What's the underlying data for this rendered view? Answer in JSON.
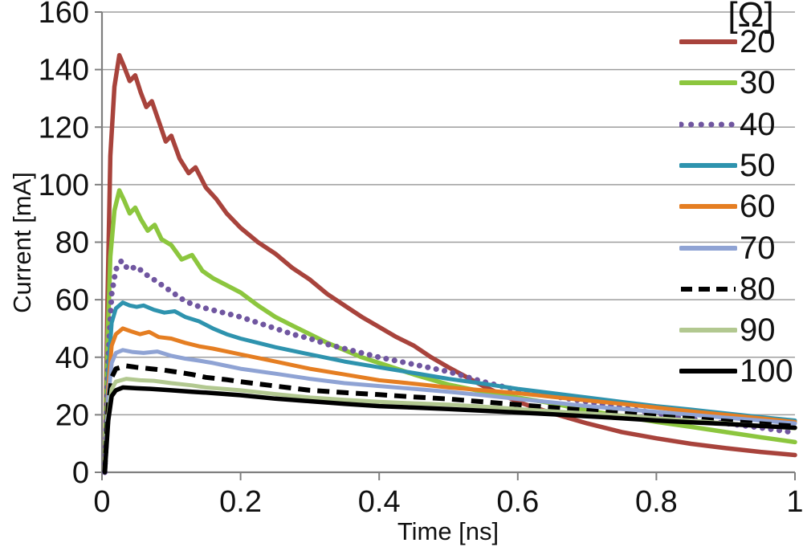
{
  "chart_data": {
    "type": "line",
    "title": "",
    "xlabel": "Time [ns]",
    "ylabel": "Current [mA]",
    "legend_title": "[Ω]",
    "legend_position": "right-overlay",
    "xlim": [
      0,
      1
    ],
    "ylim": [
      0,
      160
    ],
    "xticks": [
      "0",
      "0.2",
      "0.4",
      "0.6",
      "0.8",
      "1"
    ],
    "xtick_values": [
      0,
      0.2,
      0.4,
      0.6,
      0.8,
      1
    ],
    "yticks": [
      "0",
      "20",
      "40",
      "60",
      "80",
      "100",
      "120",
      "140",
      "160"
    ],
    "ytick_values": [
      0,
      20,
      40,
      60,
      80,
      100,
      120,
      140,
      160
    ],
    "grid": "horizontal",
    "gridline_color": "#9E9E9E",
    "axis_color": "#7F7F7F",
    "text_color": "#111111",
    "background_color": "#FFFFFF",
    "series": [
      {
        "name": "20",
        "color": "#A8433C",
        "style": "solid",
        "width": 5.5,
        "points": [
          [
            0.004,
            0
          ],
          [
            0.008,
            60
          ],
          [
            0.012,
            110
          ],
          [
            0.018,
            134
          ],
          [
            0.025,
            145
          ],
          [
            0.032,
            141
          ],
          [
            0.04,
            136
          ],
          [
            0.048,
            138
          ],
          [
            0.056,
            132
          ],
          [
            0.064,
            127
          ],
          [
            0.072,
            129
          ],
          [
            0.082,
            122
          ],
          [
            0.092,
            115
          ],
          [
            0.1,
            117
          ],
          [
            0.112,
            109
          ],
          [
            0.125,
            104
          ],
          [
            0.135,
            106
          ],
          [
            0.15,
            99
          ],
          [
            0.165,
            95
          ],
          [
            0.18,
            90
          ],
          [
            0.2,
            85
          ],
          [
            0.225,
            80
          ],
          [
            0.25,
            76
          ],
          [
            0.275,
            71
          ],
          [
            0.3,
            67
          ],
          [
            0.325,
            62
          ],
          [
            0.35,
            58
          ],
          [
            0.375,
            54
          ],
          [
            0.4,
            50.5
          ],
          [
            0.425,
            47
          ],
          [
            0.45,
            44
          ],
          [
            0.475,
            40
          ],
          [
            0.5,
            36.5
          ],
          [
            0.55,
            30
          ],
          [
            0.6,
            24.5
          ],
          [
            0.65,
            20.5
          ],
          [
            0.7,
            17
          ],
          [
            0.75,
            14
          ],
          [
            0.8,
            11.8
          ],
          [
            0.85,
            9.9
          ],
          [
            0.9,
            8.4
          ],
          [
            0.95,
            7.1
          ],
          [
            1,
            6
          ]
        ]
      },
      {
        "name": "30",
        "color": "#8CC63E",
        "style": "solid",
        "width": 5.5,
        "points": [
          [
            0.004,
            0
          ],
          [
            0.008,
            45
          ],
          [
            0.012,
            75
          ],
          [
            0.018,
            91
          ],
          [
            0.025,
            98
          ],
          [
            0.032,
            94.5
          ],
          [
            0.04,
            90
          ],
          [
            0.048,
            92
          ],
          [
            0.056,
            88
          ],
          [
            0.066,
            84
          ],
          [
            0.076,
            86
          ],
          [
            0.086,
            81
          ],
          [
            0.1,
            79
          ],
          [
            0.115,
            74
          ],
          [
            0.13,
            75.5
          ],
          [
            0.145,
            70
          ],
          [
            0.16,
            67.5
          ],
          [
            0.18,
            65
          ],
          [
            0.2,
            62.5
          ],
          [
            0.225,
            58
          ],
          [
            0.25,
            54
          ],
          [
            0.275,
            51
          ],
          [
            0.3,
            48
          ],
          [
            0.325,
            45
          ],
          [
            0.35,
            42.5
          ],
          [
            0.375,
            40
          ],
          [
            0.4,
            38
          ],
          [
            0.45,
            34
          ],
          [
            0.5,
            30.5
          ],
          [
            0.55,
            28
          ],
          [
            0.6,
            26
          ],
          [
            0.65,
            24
          ],
          [
            0.7,
            21.5
          ],
          [
            0.75,
            19.5
          ],
          [
            0.8,
            17.5
          ],
          [
            0.85,
            15.8
          ],
          [
            0.9,
            14
          ],
          [
            0.95,
            12.2
          ],
          [
            1,
            10.5
          ]
        ]
      },
      {
        "name": "40",
        "color": "#7056A0",
        "style": "dotted",
        "width": 7,
        "points": [
          [
            0.004,
            0
          ],
          [
            0.009,
            40
          ],
          [
            0.014,
            62
          ],
          [
            0.02,
            70.5
          ],
          [
            0.028,
            73.5
          ],
          [
            0.038,
            70.5
          ],
          [
            0.05,
            71.5
          ],
          [
            0.062,
            69
          ],
          [
            0.075,
            67
          ],
          [
            0.09,
            64.5
          ],
          [
            0.105,
            62
          ],
          [
            0.12,
            59.5
          ],
          [
            0.135,
            58
          ],
          [
            0.15,
            57
          ],
          [
            0.175,
            55.5
          ],
          [
            0.2,
            54
          ],
          [
            0.225,
            52
          ],
          [
            0.25,
            50
          ],
          [
            0.275,
            48
          ],
          [
            0.3,
            46.5
          ],
          [
            0.325,
            44.5
          ],
          [
            0.35,
            43
          ],
          [
            0.4,
            40
          ],
          [
            0.45,
            37.5
          ],
          [
            0.5,
            35
          ],
          [
            0.55,
            31.5
          ],
          [
            0.6,
            28.5
          ],
          [
            0.65,
            26.5
          ],
          [
            0.7,
            24.5
          ],
          [
            0.75,
            22.5
          ],
          [
            0.8,
            20.5
          ],
          [
            0.85,
            18.5
          ],
          [
            0.9,
            17
          ],
          [
            0.95,
            15.5
          ],
          [
            1,
            13.8
          ]
        ]
      },
      {
        "name": "50",
        "color": "#2E93AE",
        "style": "solid",
        "width": 5,
        "points": [
          [
            0.004,
            0
          ],
          [
            0.009,
            35
          ],
          [
            0.014,
            52
          ],
          [
            0.02,
            57
          ],
          [
            0.03,
            59
          ],
          [
            0.04,
            58
          ],
          [
            0.05,
            57.5
          ],
          [
            0.06,
            58
          ],
          [
            0.075,
            56.5
          ],
          [
            0.09,
            55.5
          ],
          [
            0.105,
            56
          ],
          [
            0.12,
            54
          ],
          [
            0.14,
            52.5
          ],
          [
            0.16,
            50
          ],
          [
            0.18,
            48
          ],
          [
            0.2,
            46.5
          ],
          [
            0.225,
            45
          ],
          [
            0.25,
            43.5
          ],
          [
            0.3,
            41
          ],
          [
            0.35,
            38.5
          ],
          [
            0.4,
            36.5
          ],
          [
            0.45,
            34.5
          ],
          [
            0.5,
            32.5
          ],
          [
            0.55,
            30.8
          ],
          [
            0.6,
            29
          ],
          [
            0.65,
            27.5
          ],
          [
            0.7,
            26
          ],
          [
            0.75,
            24.5
          ],
          [
            0.8,
            23
          ],
          [
            0.85,
            21.8
          ],
          [
            0.9,
            20.5
          ],
          [
            0.95,
            19.2
          ],
          [
            1,
            18
          ]
        ]
      },
      {
        "name": "60",
        "color": "#E57E22",
        "style": "solid",
        "width": 5,
        "points": [
          [
            0.004,
            0
          ],
          [
            0.009,
            30
          ],
          [
            0.014,
            44
          ],
          [
            0.02,
            48
          ],
          [
            0.03,
            50
          ],
          [
            0.042,
            49
          ],
          [
            0.055,
            48
          ],
          [
            0.068,
            48.8
          ],
          [
            0.082,
            47
          ],
          [
            0.1,
            46.5
          ],
          [
            0.12,
            45
          ],
          [
            0.14,
            43.8
          ],
          [
            0.16,
            43
          ],
          [
            0.18,
            42
          ],
          [
            0.2,
            41
          ],
          [
            0.25,
            38.5
          ],
          [
            0.3,
            36
          ],
          [
            0.35,
            34
          ],
          [
            0.4,
            32
          ],
          [
            0.45,
            30.8
          ],
          [
            0.5,
            29.5
          ],
          [
            0.55,
            28.5
          ],
          [
            0.6,
            27.5
          ],
          [
            0.65,
            26.2
          ],
          [
            0.7,
            25
          ],
          [
            0.75,
            23.8
          ],
          [
            0.8,
            22.5
          ],
          [
            0.85,
            21.2
          ],
          [
            0.9,
            20
          ],
          [
            0.95,
            18.8
          ],
          [
            1,
            17.5
          ]
        ]
      },
      {
        "name": "70",
        "color": "#8FA3D4",
        "style": "solid",
        "width": 5,
        "points": [
          [
            0.004,
            0
          ],
          [
            0.009,
            26
          ],
          [
            0.014,
            38
          ],
          [
            0.02,
            41.5
          ],
          [
            0.03,
            42.5
          ],
          [
            0.045,
            41.8
          ],
          [
            0.06,
            41.5
          ],
          [
            0.08,
            42
          ],
          [
            0.1,
            40.5
          ],
          [
            0.12,
            39.5
          ],
          [
            0.14,
            38.8
          ],
          [
            0.16,
            38
          ],
          [
            0.18,
            37
          ],
          [
            0.2,
            36
          ],
          [
            0.25,
            34.3
          ],
          [
            0.3,
            32.5
          ],
          [
            0.35,
            31
          ],
          [
            0.4,
            30
          ],
          [
            0.45,
            29
          ],
          [
            0.5,
            28
          ],
          [
            0.55,
            26.8
          ],
          [
            0.6,
            25.5
          ],
          [
            0.65,
            24.3
          ],
          [
            0.7,
            23
          ],
          [
            0.75,
            22
          ],
          [
            0.8,
            21
          ],
          [
            0.85,
            20
          ],
          [
            0.9,
            19
          ],
          [
            0.95,
            18
          ],
          [
            1,
            17
          ]
        ]
      },
      {
        "name": "80",
        "color": "#000000",
        "style": "dashed",
        "width": 6,
        "points": [
          [
            0.004,
            0
          ],
          [
            0.009,
            23
          ],
          [
            0.014,
            33
          ],
          [
            0.02,
            36
          ],
          [
            0.035,
            37
          ],
          [
            0.05,
            36.5
          ],
          [
            0.07,
            36
          ],
          [
            0.09,
            35.5
          ],
          [
            0.11,
            34.8
          ],
          [
            0.13,
            34
          ],
          [
            0.15,
            33
          ],
          [
            0.18,
            32.2
          ],
          [
            0.2,
            31.5
          ],
          [
            0.25,
            30
          ],
          [
            0.3,
            28.5
          ],
          [
            0.35,
            27.7
          ],
          [
            0.4,
            27
          ],
          [
            0.45,
            26.2
          ],
          [
            0.5,
            25.5
          ],
          [
            0.55,
            24.5
          ],
          [
            0.6,
            23.5
          ],
          [
            0.65,
            22.5
          ],
          [
            0.7,
            21.5
          ],
          [
            0.75,
            20.5
          ],
          [
            0.8,
            19.5
          ],
          [
            0.85,
            18.7
          ],
          [
            0.9,
            17.8
          ],
          [
            0.95,
            16.9
          ],
          [
            1,
            16
          ]
        ]
      },
      {
        "name": "90",
        "color": "#B2C890",
        "style": "solid",
        "width": 5,
        "points": [
          [
            0.004,
            0
          ],
          [
            0.009,
            20
          ],
          [
            0.014,
            29
          ],
          [
            0.02,
            31.5
          ],
          [
            0.035,
            32.5
          ],
          [
            0.055,
            32
          ],
          [
            0.075,
            31.8
          ],
          [
            0.1,
            31
          ],
          [
            0.13,
            30.2
          ],
          [
            0.15,
            29.5
          ],
          [
            0.2,
            28.5
          ],
          [
            0.25,
            27.2
          ],
          [
            0.3,
            26
          ],
          [
            0.35,
            25.2
          ],
          [
            0.4,
            24.5
          ],
          [
            0.45,
            24
          ],
          [
            0.5,
            23.5
          ],
          [
            0.55,
            22.8
          ],
          [
            0.6,
            22
          ],
          [
            0.65,
            21.2
          ],
          [
            0.7,
            20.5
          ],
          [
            0.75,
            19.7
          ],
          [
            0.8,
            18.8
          ],
          [
            0.85,
            18
          ],
          [
            0.9,
            17
          ],
          [
            0.95,
            16.2
          ],
          [
            1,
            15.3
          ]
        ]
      },
      {
        "name": "100",
        "color": "#000000",
        "style": "solid",
        "width": 5.5,
        "points": [
          [
            0.004,
            0
          ],
          [
            0.009,
            18
          ],
          [
            0.014,
            26.5
          ],
          [
            0.02,
            28.5
          ],
          [
            0.03,
            29.5
          ],
          [
            0.05,
            29.2
          ],
          [
            0.07,
            29
          ],
          [
            0.1,
            28.5
          ],
          [
            0.13,
            28
          ],
          [
            0.15,
            27.7
          ],
          [
            0.2,
            26.8
          ],
          [
            0.25,
            25.6
          ],
          [
            0.3,
            24.7
          ],
          [
            0.35,
            23.8
          ],
          [
            0.4,
            23
          ],
          [
            0.45,
            22.5
          ],
          [
            0.5,
            22
          ],
          [
            0.55,
            21.4
          ],
          [
            0.6,
            20.8
          ],
          [
            0.65,
            20.2
          ],
          [
            0.7,
            19.5
          ],
          [
            0.75,
            18.8
          ],
          [
            0.8,
            18
          ],
          [
            0.85,
            17.4
          ],
          [
            0.9,
            16.8
          ],
          [
            0.95,
            16.1
          ],
          [
            1,
            15.5
          ]
        ]
      }
    ]
  }
}
